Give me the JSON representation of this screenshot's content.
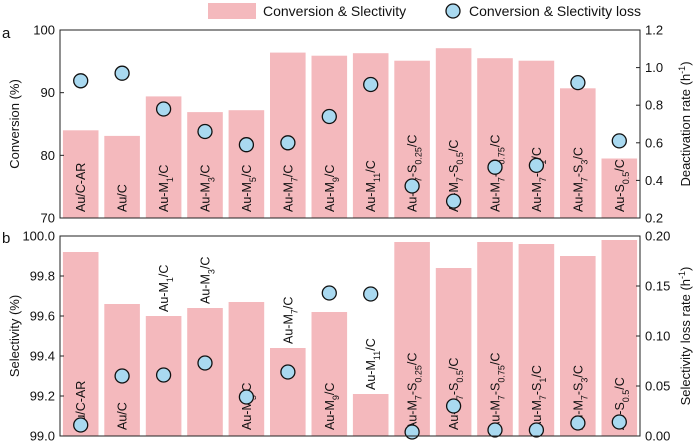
{
  "legend": {
    "bar_label": "Conversion & Slectivity",
    "marker_label": "Conversion & Slectivity loss"
  },
  "colors": {
    "bar": "#f4b9bd",
    "marker_fill": "#a9d9f0",
    "marker_edge": "#111111"
  },
  "chart_data": [
    {
      "panel": "a",
      "type": "bar",
      "categories": [
        "Au/C-AR",
        "Au/C",
        "Au-M1/C",
        "Au-M3/C",
        "Au-M5/C",
        "Au-M7/C",
        "Au-M9/C",
        "Au-M11/C",
        "Au-M7-S0.25/C",
        "Au-M7-S0.5/C",
        "Au-M7-S0.75/C",
        "Au-M7-S1/C",
        "Au-M7-S3/C",
        "Au-S0.5/C"
      ],
      "label_parts": [
        [
          [
            "Au/C-AR",
            ""
          ]
        ],
        [
          [
            "Au/C",
            ""
          ]
        ],
        [
          [
            "Au-M",
            ""
          ],
          [
            "1",
            "sub"
          ],
          [
            "/C",
            ""
          ]
        ],
        [
          [
            "Au-M",
            ""
          ],
          [
            "3",
            "sub"
          ],
          [
            "/C",
            ""
          ]
        ],
        [
          [
            "Au-M",
            ""
          ],
          [
            "5",
            "sub"
          ],
          [
            "/C",
            ""
          ]
        ],
        [
          [
            "Au-M",
            ""
          ],
          [
            "7",
            "sub"
          ],
          [
            "/C",
            ""
          ]
        ],
        [
          [
            "Au-M",
            ""
          ],
          [
            "9",
            "sub"
          ],
          [
            "/C",
            ""
          ]
        ],
        [
          [
            "Au-M",
            ""
          ],
          [
            "11",
            "sub"
          ],
          [
            "/C",
            ""
          ]
        ],
        [
          [
            "Au-M",
            ""
          ],
          [
            "7",
            "sub"
          ],
          [
            "-S",
            ""
          ],
          [
            "0.25",
            "sub"
          ],
          [
            "/C",
            ""
          ]
        ],
        [
          [
            "Au-M",
            ""
          ],
          [
            "7",
            "sub"
          ],
          [
            "-S",
            ""
          ],
          [
            "0.5",
            "sub"
          ],
          [
            "/C",
            ""
          ]
        ],
        [
          [
            "Au-M",
            ""
          ],
          [
            "7",
            "sub"
          ],
          [
            "-S",
            ""
          ],
          [
            "0.75",
            "sub"
          ],
          [
            "/C",
            ""
          ]
        ],
        [
          [
            "Au-M",
            ""
          ],
          [
            "7",
            "sub"
          ],
          [
            "-S",
            ""
          ],
          [
            "1",
            "sub"
          ],
          [
            "/C",
            ""
          ]
        ],
        [
          [
            "Au-M",
            ""
          ],
          [
            "7",
            "sub"
          ],
          [
            "-S",
            ""
          ],
          [
            "3",
            "sub"
          ],
          [
            "/C",
            ""
          ]
        ],
        [
          [
            "Au-S",
            ""
          ],
          [
            "0.5",
            "sub"
          ],
          [
            "/C",
            ""
          ]
        ]
      ],
      "label_at_top": [
        false,
        false,
        false,
        false,
        false,
        false,
        false,
        false,
        false,
        false,
        false,
        false,
        false,
        false
      ],
      "bar_axis": {
        "label": "Conversion (%)",
        "ylim": [
          70,
          100
        ],
        "ticks": [
          70,
          80,
          90,
          100
        ]
      },
      "marker_axis": {
        "label": "Deactivation rate (h",
        "label_sup": "-1",
        "label_tail": ")",
        "ylim": [
          0.2,
          1.2
        ],
        "ticks": [
          0.2,
          0.4,
          0.6,
          0.8,
          1.0,
          1.2
        ],
        "tick_labels": [
          "0.2",
          "0.4",
          "0.6",
          "0.8",
          "1.0",
          "1.2"
        ]
      },
      "bar_values": [
        84.0,
        83.1,
        89.4,
        86.9,
        87.2,
        96.4,
        95.9,
        96.3,
        95.1,
        97.1,
        95.5,
        95.1,
        90.7,
        79.5
      ],
      "marker_values": [
        0.93,
        0.97,
        0.78,
        0.66,
        0.59,
        0.6,
        0.74,
        0.91,
        0.37,
        0.29,
        0.47,
        0.48,
        0.92,
        0.61
      ]
    },
    {
      "panel": "b",
      "type": "bar",
      "categories": [
        "Au/C-AR",
        "Au/C",
        "Au-M1/C",
        "Au-M3/C",
        "Au-M5/C",
        "Au-M7/C",
        "Au-M9/C",
        "Au-M11/C",
        "Au-M7-S0.25/C",
        "Au-M7-S0.5/C",
        "Au-M7-S0.75/C",
        "Au-M7-S1/C",
        "Au-M7-S3/C",
        "Au-S0.5/C"
      ],
      "label_parts": [
        [
          [
            "Au/C-AR",
            ""
          ]
        ],
        [
          [
            "Au/C",
            ""
          ]
        ],
        [
          [
            "Au-M",
            ""
          ],
          [
            "1",
            "sub"
          ],
          [
            "/C",
            ""
          ]
        ],
        [
          [
            "Au-M",
            ""
          ],
          [
            "3",
            "sub"
          ],
          [
            "/C",
            ""
          ]
        ],
        [
          [
            "Au-M",
            ""
          ],
          [
            "5",
            "sub"
          ],
          [
            "/C",
            ""
          ]
        ],
        [
          [
            "Au-M",
            ""
          ],
          [
            "7",
            "sub"
          ],
          [
            "/C",
            ""
          ]
        ],
        [
          [
            "Au-M",
            ""
          ],
          [
            "9",
            "sub"
          ],
          [
            "/C",
            ""
          ]
        ],
        [
          [
            "Au-M",
            ""
          ],
          [
            "11",
            "sub"
          ],
          [
            "/C",
            ""
          ]
        ],
        [
          [
            "Au-M",
            ""
          ],
          [
            "7",
            "sub"
          ],
          [
            "-S",
            ""
          ],
          [
            "0.25",
            "sub"
          ],
          [
            "/C",
            ""
          ]
        ],
        [
          [
            "Au-M",
            ""
          ],
          [
            "7",
            "sub"
          ],
          [
            "-S",
            ""
          ],
          [
            "0.5",
            "sub"
          ],
          [
            "/C",
            ""
          ]
        ],
        [
          [
            "Au-M",
            ""
          ],
          [
            "7",
            "sub"
          ],
          [
            "-S",
            ""
          ],
          [
            "0.75",
            "sub"
          ],
          [
            "/C",
            ""
          ]
        ],
        [
          [
            "Au-M",
            ""
          ],
          [
            "7",
            "sub"
          ],
          [
            "-S",
            ""
          ],
          [
            "1",
            "sub"
          ],
          [
            "/C",
            ""
          ]
        ],
        [
          [
            "Au-M",
            ""
          ],
          [
            "7",
            "sub"
          ],
          [
            "-S",
            ""
          ],
          [
            "3",
            "sub"
          ],
          [
            "/C",
            ""
          ]
        ],
        [
          [
            "Au-S",
            ""
          ],
          [
            "0.5",
            "sub"
          ],
          [
            "/C",
            ""
          ]
        ]
      ],
      "label_at_top": [
        false,
        false,
        true,
        true,
        false,
        true,
        false,
        true,
        false,
        false,
        false,
        false,
        false,
        false
      ],
      "bar_axis": {
        "label": "Selectivity (%)",
        "ylim": [
          99.0,
          100.0
        ],
        "ticks": [
          99.0,
          99.2,
          99.4,
          99.6,
          99.8,
          100.0
        ],
        "tick_labels": [
          "99.0",
          "99.2",
          "99.4",
          "99.6",
          "99.8",
          "100.0"
        ]
      },
      "marker_axis": {
        "label": "Selectivity loss rate (h",
        "label_sup": "-1",
        "label_tail": ")",
        "ylim": [
          0.0,
          0.2
        ],
        "ticks": [
          0.0,
          0.05,
          0.1,
          0.15,
          0.2
        ],
        "tick_labels": [
          "0.00",
          "0.05",
          "0.10",
          "0.15",
          "0.20"
        ]
      },
      "bar_values": [
        99.92,
        99.66,
        99.6,
        99.64,
        99.67,
        99.44,
        99.62,
        99.21,
        99.97,
        99.84,
        99.97,
        99.96,
        99.9,
        99.98
      ],
      "marker_values": [
        0.011,
        0.06,
        0.061,
        0.073,
        0.039,
        0.064,
        0.143,
        0.142,
        0.004,
        0.03,
        0.006,
        0.006,
        0.013,
        0.014
      ]
    }
  ]
}
